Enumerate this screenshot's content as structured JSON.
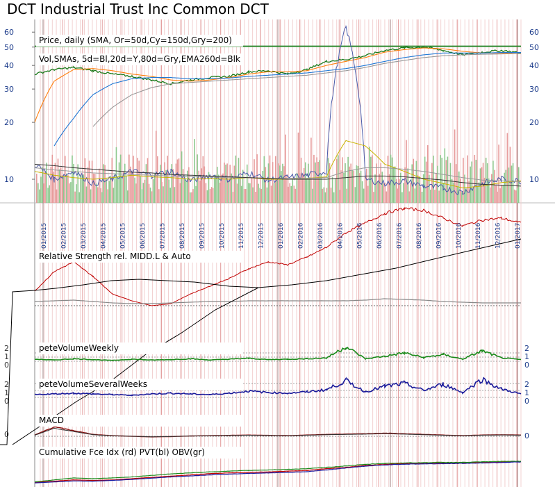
{
  "title": "DCT Industrial Trust Inc Common DCT",
  "panel_labels": {
    "price_1": "Price,  daily (SMA, Or=50d,Cy=150d,Gry=200)",
    "price_2": "Vol,SMAs, 5d=Bl,20d=Y,80d=Gry,EMA260d=Blk",
    "rs": "Relative Strength rel. MIDD.L & Auto",
    "pvw": "peteVolumeWeekly",
    "pvsw": "peteVolumeSeveralWeeks",
    "macd": "MACD",
    "cfi": "Cumulative Fce Idx (rd) PVT(bl) OBV(gr)"
  },
  "colors": {
    "price": "#1a7a1a",
    "sma50": "#ff7f0e",
    "sma150": "#1f77d4",
    "sma200": "#999999",
    "vol_up": "#8fc98f",
    "vol_down": "#e79b9b",
    "rs": "#c00000",
    "pvw": "#1a8a1a",
    "pvsw": "#1a1a9a",
    "grid_month": "#e4a0a0",
    "grid_minor": "#f2d0d0",
    "resistance": "#2f8a2f"
  },
  "chart_data": [
    {
      "type": "line",
      "name": "price-panel",
      "yscale": "log",
      "y_ticks_left": [
        "60",
        "50",
        "40",
        "30",
        "20",
        "10"
      ],
      "y_ticks_right": [
        "60",
        "50",
        "40",
        "30",
        "20",
        "10"
      ],
      "y_tick_values": [
        60,
        50,
        40,
        30,
        20,
        10
      ],
      "ylim": [
        7.5,
        70
      ],
      "resistance_level": 50.5,
      "x_tick_labels": [
        "01/2015",
        "02/2015",
        "03/2015",
        "04/2015",
        "05/2015",
        "06/2015",
        "07/2015",
        "08/2015",
        "09/2015",
        "10/2015",
        "11/2015",
        "12/2015",
        "01/2016",
        "02/2016",
        "03/2016",
        "04/2016",
        "05/2016",
        "06/2016",
        "07/2016",
        "08/2016",
        "09/2016",
        "10/2016",
        "11/2016",
        "12/2016",
        "01/2017"
      ],
      "series": [
        {
          "key": "close",
          "values": [
            36,
            38,
            39,
            37.5,
            36,
            35,
            33.5,
            32,
            33.5,
            34.5,
            35,
            37,
            37.5,
            36,
            38,
            42,
            43,
            45,
            48,
            49.5,
            50,
            48,
            45.5,
            47,
            48,
            46.5
          ]
        },
        {
          "key": "sma50",
          "values": [
            20,
            33,
            38,
            38.5,
            37.5,
            36,
            35,
            33.5,
            33,
            33.5,
            34.5,
            36,
            37,
            37,
            37.5,
            40,
            42,
            44,
            47,
            48.5,
            49.5,
            49,
            47.5,
            46.5,
            46.5,
            46.2
          ]
        },
        {
          "key": "sma150",
          "values": [
            null,
            15,
            21,
            28,
            32,
            34,
            34.5,
            34.5,
            34,
            34,
            34.3,
            35,
            35.5,
            36,
            36.5,
            37.5,
            38.5,
            40,
            42,
            44,
            45.5,
            46.5,
            46.5,
            46.5,
            46.8,
            46.8
          ]
        },
        {
          "key": "sma200",
          "values": [
            null,
            null,
            null,
            19,
            24,
            28,
            30.5,
            32,
            32.5,
            33,
            33.5,
            34,
            34.5,
            35,
            35.5,
            36.5,
            37.5,
            39,
            41,
            42.5,
            44,
            45,
            45.5,
            45.8,
            46,
            46.2
          ]
        }
      ],
      "volume_overlay": {
        "sma5_values": [
          12,
          10,
          11,
          9.5,
          10,
          11,
          10.5,
          11,
          9.8,
          10.5,
          10,
          10.8,
          9.9,
          10.2,
          10.5,
          11,
          64,
          10,
          9.5,
          9.8,
          9.2,
          9,
          8.5,
          9.5,
          10,
          9.8
        ],
        "sma20_values": [
          11,
          10.5,
          10.2,
          10,
          10.2,
          10.5,
          10.3,
          10.2,
          10,
          10.1,
          10,
          10.2,
          10,
          10,
          10.1,
          10.3,
          16,
          15,
          12,
          11,
          10,
          9.5,
          9,
          9.2,
          9.6,
          9.8
        ],
        "sma80_values": [
          11.5,
          11.2,
          11,
          10.8,
          10.7,
          10.6,
          10.5,
          10.4,
          10.3,
          10.3,
          10.2,
          10.2,
          10.1,
          10.1,
          10.1,
          10.2,
          11,
          11.5,
          11.5,
          11.3,
          11,
          10.6,
          10.2,
          9.9,
          9.8,
          9.7
        ],
        "ema260_values": [
          12,
          11.8,
          11.5,
          11.3,
          11.1,
          10.9,
          10.8,
          10.6,
          10.5,
          10.4,
          10.3,
          10.2,
          10.1,
          10,
          10,
          10,
          10.2,
          10.4,
          10.4,
          10.3,
          10.1,
          9.9,
          9.6,
          9.4,
          9.3,
          9.2
        ]
      }
    },
    {
      "type": "line",
      "name": "relative-strength",
      "series": [
        {
          "key": "rs",
          "values": [
            0.15,
            0.35,
            0.45,
            0.3,
            0.12,
            0.05,
            0.0,
            0.02,
            0.12,
            0.2,
            0.28,
            0.38,
            0.45,
            0.42,
            0.5,
            0.6,
            0.75,
            0.85,
            0.95,
            1.0,
            0.98,
            0.9,
            0.82,
            0.88,
            0.9,
            0.85
          ]
        },
        {
          "key": "rs_ref",
          "values": [
            0.06,
            0.07,
            0.08,
            0.06,
            0.04,
            0.03,
            0.03,
            0.04,
            0.05,
            0.06,
            0.06,
            0.07,
            0.07,
            0.07,
            0.07,
            0.07,
            0.07,
            0.08,
            0.1,
            0.09,
            0.08,
            0.06,
            0.05,
            0.04,
            0.04,
            0.04
          ]
        }
      ]
    },
    {
      "type": "line",
      "name": "pete-volume-weekly",
      "y_ticks": [
        "2",
        "1",
        "0"
      ],
      "series": [
        {
          "key": "pvw",
          "values": [
            0.5,
            0.3,
            0.6,
            0.4,
            0.2,
            0.5,
            0.3,
            0.4,
            0.6,
            0.3,
            0.5,
            0.7,
            0.4,
            0.5,
            0.6,
            0.8,
            3.5,
            0.6,
            1.2,
            2.0,
            0.9,
            1.6,
            0.5,
            2.5,
            0.8,
            0.4
          ]
        }
      ]
    },
    {
      "type": "line",
      "name": "pete-volume-several-weeks",
      "y_ticks": [
        "2",
        "1",
        "0"
      ],
      "series": [
        {
          "key": "pvsw",
          "values": [
            0.4,
            0.5,
            0.6,
            0.5,
            0.4,
            0.3,
            0.5,
            0.6,
            0.5,
            0.4,
            0.6,
            0.9,
            0.7,
            0.6,
            0.8,
            1.1,
            2.4,
            0.8,
            1.6,
            2.0,
            1.0,
            1.9,
            0.7,
            2.6,
            1.2,
            0.5
          ]
        }
      ]
    },
    {
      "type": "line",
      "name": "macd",
      "y_ticks": [
        "0"
      ],
      "series": [
        {
          "key": "macd",
          "values": [
            0.2,
            1.5,
            0.9,
            0.3,
            0.1,
            0.0,
            -0.1,
            -0.05,
            0.05,
            0.1,
            0.15,
            0.2,
            0.15,
            0.1,
            0.2,
            0.3,
            0.35,
            0.4,
            0.5,
            0.4,
            0.3,
            0.2,
            0.1,
            0.2,
            0.25,
            0.2
          ]
        }
      ]
    },
    {
      "type": "line",
      "name": "cumulative-force",
      "series": [
        {
          "key": "cfi",
          "values": [
            0.1,
            0.15,
            0.2,
            0.18,
            0.2,
            0.25,
            0.3,
            0.35,
            0.4,
            0.45,
            0.48,
            0.5,
            0.52,
            0.55,
            0.58,
            0.65,
            0.7,
            0.78,
            0.82,
            0.85,
            0.86,
            0.87,
            0.88,
            0.9,
            0.92,
            0.93
          ]
        },
        {
          "key": "pvt",
          "values": [
            0.08,
            0.12,
            0.16,
            0.15,
            0.18,
            0.22,
            0.27,
            0.32,
            0.36,
            0.4,
            0.43,
            0.46,
            0.48,
            0.5,
            0.53,
            0.6,
            0.68,
            0.75,
            0.8,
            0.83,
            0.84,
            0.85,
            0.86,
            0.88,
            0.9,
            0.92
          ]
        },
        {
          "key": "obv",
          "values": [
            0.12,
            0.2,
            0.28,
            0.25,
            0.28,
            0.32,
            0.38,
            0.44,
            0.48,
            0.52,
            0.55,
            0.58,
            0.6,
            0.62,
            0.65,
            0.7,
            0.76,
            0.82,
            0.86,
            0.88,
            0.89,
            0.9,
            0.9,
            0.92,
            0.94,
            0.95
          ]
        }
      ]
    }
  ]
}
